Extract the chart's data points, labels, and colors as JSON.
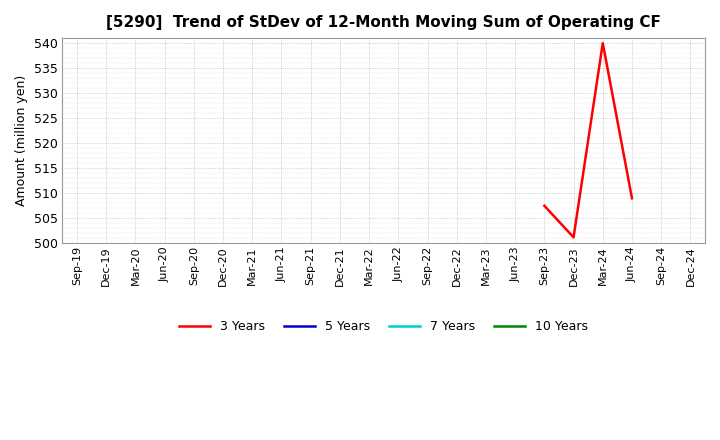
{
  "title": "[5290]  Trend of StDev of 12-Month Moving Sum of Operating CF",
  "ylabel": "Amount (million yen)",
  "ylim": [
    500,
    541
  ],
  "yticks": [
    500,
    505,
    510,
    515,
    520,
    525,
    530,
    535,
    540
  ],
  "background_color": "#ffffff",
  "plot_bg_color": "#ffffff",
  "grid_color": "#999999",
  "x_labels": [
    "Sep-19",
    "Dec-19",
    "Mar-20",
    "Jun-20",
    "Sep-20",
    "Dec-20",
    "Mar-21",
    "Jun-21",
    "Sep-21",
    "Dec-21",
    "Mar-22",
    "Jun-22",
    "Sep-22",
    "Dec-22",
    "Mar-23",
    "Jun-23",
    "Sep-23",
    "Dec-23",
    "Mar-24",
    "Jun-24",
    "Sep-24",
    "Dec-24"
  ],
  "series": {
    "3 Years": {
      "color": "#ff0000",
      "linewidth": 1.8,
      "data_x": [
        "Sep-23",
        "Dec-23",
        "Mar-24",
        "Jun-24"
      ],
      "data_y": [
        507.5,
        501.2,
        540.0,
        509.0
      ]
    },
    "5 Years": {
      "color": "#0000cc",
      "linewidth": 1.8,
      "data_x": [],
      "data_y": []
    },
    "7 Years": {
      "color": "#00cccc",
      "linewidth": 1.8,
      "data_x": [],
      "data_y": []
    },
    "10 Years": {
      "color": "#008800",
      "linewidth": 1.8,
      "data_x": [],
      "data_y": []
    }
  },
  "legend_order": [
    "3 Years",
    "5 Years",
    "7 Years",
    "10 Years"
  ],
  "legend_colors": [
    "#ff0000",
    "#0000cc",
    "#00cccc",
    "#008800"
  ],
  "title_fontsize": 11,
  "ylabel_fontsize": 9,
  "tick_fontsize": 9,
  "xtick_fontsize": 8
}
